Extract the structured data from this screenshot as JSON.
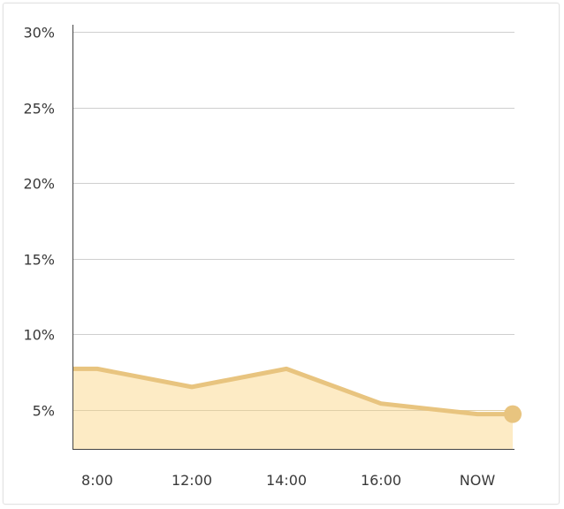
{
  "colors": {
    "line": "#e8c47f",
    "area": "#fdebc5",
    "grid": "#cfcfcf",
    "axis": "#444444",
    "text": "#3a3a3a"
  },
  "chart_data": {
    "type": "area",
    "title": "",
    "xlabel": "",
    "ylabel": "",
    "categories": [
      "8:00",
      "12:00",
      "14:00",
      "16:00",
      "NOW"
    ],
    "values": [
      7.7,
      6.5,
      7.7,
      5.4,
      4.7
    ],
    "ylim": [
      2.4,
      30
    ],
    "y_ticks": [
      5,
      10,
      15,
      20,
      25,
      30
    ],
    "y_tick_labels": [
      "5%",
      "10%",
      "15%",
      "20%",
      "25%",
      "30%"
    ],
    "grid": true,
    "highlight_last_point": true
  }
}
